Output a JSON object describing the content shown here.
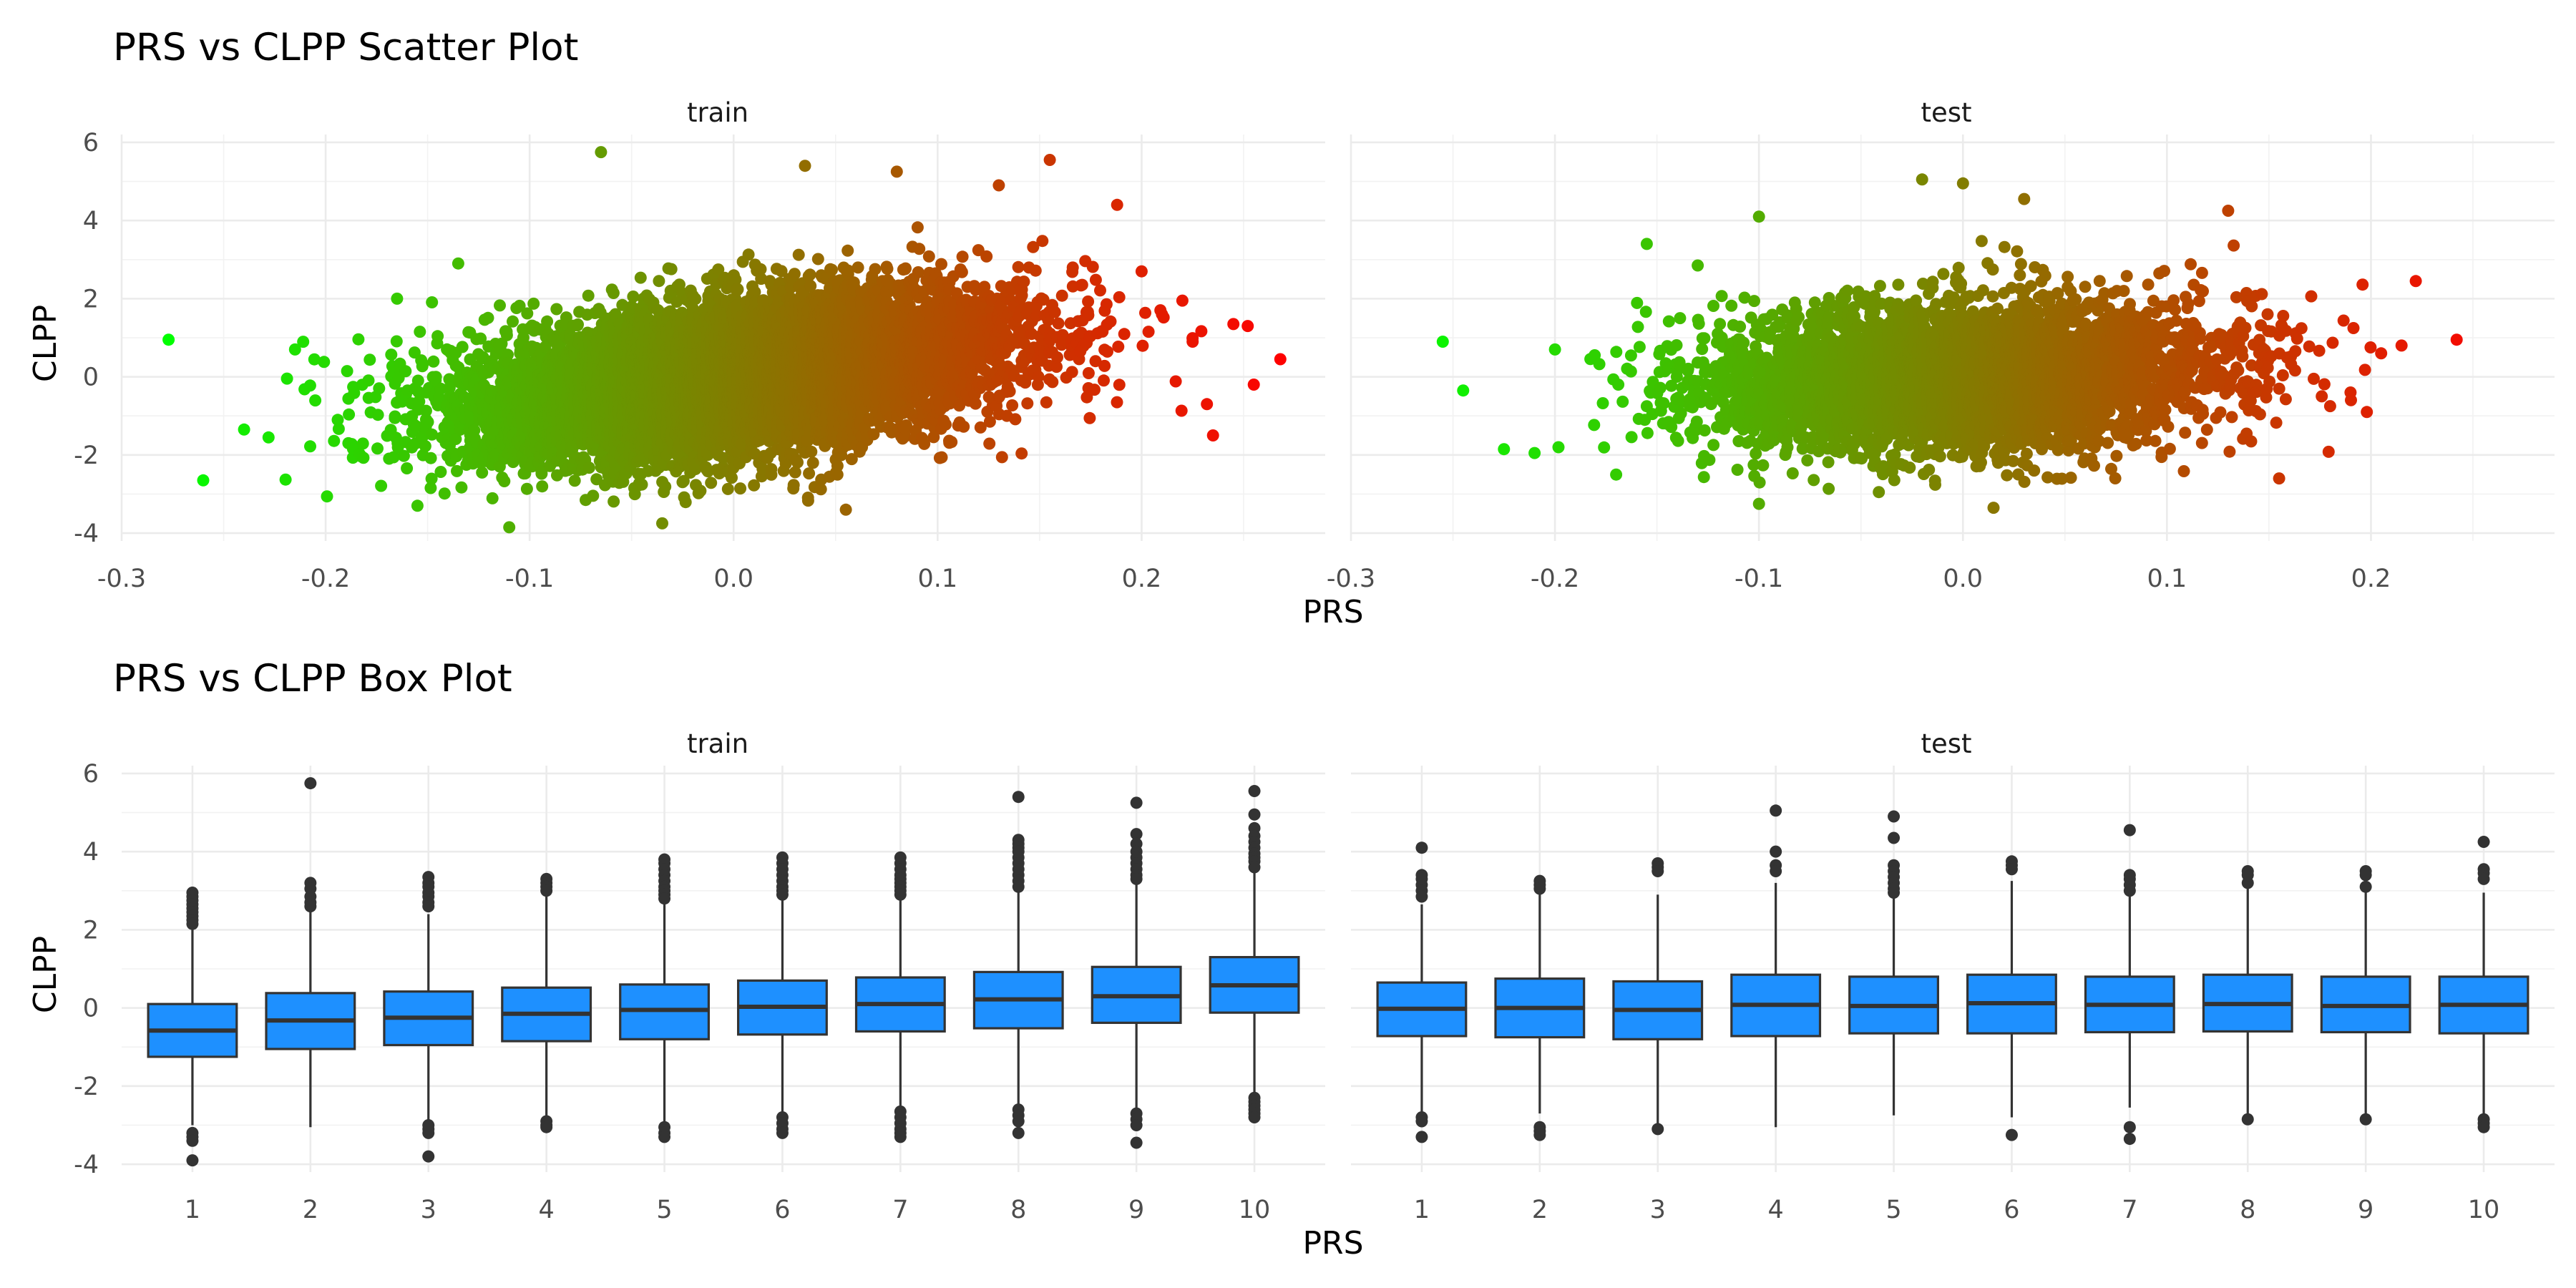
{
  "chart_data": [
    {
      "type": "scatter",
      "title": "PRS vs CLPP Scatter Plot",
      "xlabel": "PRS",
      "ylabel": "CLPP",
      "facets": [
        "train",
        "test"
      ],
      "x_ticks": [
        "-0.3",
        "-0.2",
        "-0.1",
        "0.0",
        "0.1",
        "0.2"
      ],
      "y_ticks": [
        "-4",
        "-2",
        "0",
        "2",
        "4",
        "6"
      ],
      "xlim": [
        -0.3,
        0.29
      ],
      "ylim": [
        -4.2,
        6.2
      ],
      "grid": true,
      "color_scale": {
        "low": "#00ff00",
        "high": "#ff0000",
        "maps": "PRS"
      },
      "series": [
        {
          "facet": "train",
          "cloud": {
            "n": 9000,
            "x_mean": 0.0,
            "x_sd": 0.065,
            "slope": 6.2,
            "resid_sd": 0.95,
            "x_range": [
              -0.22,
              0.23
            ],
            "y_range": [
              -3.4,
              4.3
            ]
          },
          "points": [
            {
              "x": -0.277,
              "y": 0.95
            },
            {
              "x": -0.26,
              "y": -2.65
            },
            {
              "x": -0.24,
              "y": -1.35
            },
            {
              "x": -0.228,
              "y": -1.55
            },
            {
              "x": -0.215,
              "y": 0.7
            },
            {
              "x": -0.165,
              "y": 2.0
            },
            {
              "x": -0.135,
              "y": 2.9
            },
            {
              "x": -0.155,
              "y": -3.3
            },
            {
              "x": -0.11,
              "y": -3.85
            },
            {
              "x": -0.065,
              "y": 5.75
            },
            {
              "x": -0.035,
              "y": -3.75
            },
            {
              "x": 0.035,
              "y": 5.4
            },
            {
              "x": 0.055,
              "y": -3.4
            },
            {
              "x": 0.08,
              "y": 5.25
            },
            {
              "x": 0.13,
              "y": 4.9
            },
            {
              "x": 0.155,
              "y": 5.55
            },
            {
              "x": 0.188,
              "y": 4.4
            },
            {
              "x": 0.2,
              "y": 2.7
            },
            {
              "x": 0.22,
              "y": 1.95
            },
            {
              "x": 0.232,
              "y": -0.7
            },
            {
              "x": 0.235,
              "y": -1.5
            },
            {
              "x": 0.245,
              "y": 1.35
            },
            {
              "x": 0.252,
              "y": 1.3
            },
            {
              "x": 0.255,
              "y": -0.2
            },
            {
              "x": 0.268,
              "y": 0.45
            },
            {
              "x": 0.21,
              "y": 1.6
            },
            {
              "x": 0.225,
              "y": 0.9
            }
          ]
        },
        {
          "facet": "test",
          "cloud": {
            "n": 4500,
            "x_mean": 0.0,
            "x_sd": 0.062,
            "slope": 2.0,
            "resid_sd": 0.95,
            "x_range": [
              -0.2,
              0.2
            ],
            "y_range": [
              -3.0,
              3.5
            ]
          },
          "points": [
            {
              "x": -0.255,
              "y": 0.9
            },
            {
              "x": -0.245,
              "y": -0.35
            },
            {
              "x": -0.225,
              "y": -1.85
            },
            {
              "x": -0.21,
              "y": -1.95
            },
            {
              "x": -0.2,
              "y": 0.7
            },
            {
              "x": -0.17,
              "y": -2.5
            },
            {
              "x": -0.155,
              "y": 3.4
            },
            {
              "x": -0.13,
              "y": 2.85
            },
            {
              "x": -0.1,
              "y": 4.1
            },
            {
              "x": -0.1,
              "y": -3.25
            },
            {
              "x": -0.02,
              "y": 5.05
            },
            {
              "x": 0.0,
              "y": 4.95
            },
            {
              "x": 0.015,
              "y": -3.35
            },
            {
              "x": 0.03,
              "y": 4.55
            },
            {
              "x": 0.13,
              "y": 4.25
            },
            {
              "x": 0.155,
              "y": -2.6
            },
            {
              "x": 0.18,
              "y": -0.75
            },
            {
              "x": 0.19,
              "y": -0.4
            },
            {
              "x": 0.205,
              "y": 0.6
            },
            {
              "x": 0.215,
              "y": 0.8
            },
            {
              "x": 0.222,
              "y": 2.45
            },
            {
              "x": 0.242,
              "y": 0.95
            },
            {
              "x": 0.198,
              "y": -0.9
            }
          ]
        }
      ]
    },
    {
      "type": "box",
      "title": "PRS vs CLPP Box Plot",
      "xlabel": "PRS",
      "ylabel": "CLPP",
      "facets": [
        "train",
        "test"
      ],
      "categories": [
        "1",
        "2",
        "3",
        "4",
        "5",
        "6",
        "7",
        "8",
        "9",
        "10"
      ],
      "y_ticks": [
        "-4",
        "-2",
        "0",
        "2",
        "4",
        "6"
      ],
      "ylim": [
        -4.2,
        6.2
      ],
      "grid": true,
      "fill": "#1e90ff",
      "series": [
        {
          "facet": "train",
          "boxes": [
            {
              "category": "1",
              "q1": -1.25,
              "median": -0.58,
              "q3": 0.1,
              "lower": -3.0,
              "upper": 2.05,
              "outliers": [
                2.95,
                2.85,
                2.75,
                2.65,
                2.55,
                2.45,
                2.35,
                2.25,
                2.15,
                -3.2,
                -3.3,
                -3.4,
                -3.9
              ]
            },
            {
              "category": "2",
              "q1": -1.05,
              "median": -0.32,
              "q3": 0.38,
              "lower": -3.05,
              "upper": 2.45,
              "outliers": [
                5.75,
                3.2,
                3.05,
                2.85,
                2.7,
                2.6
              ]
            },
            {
              "category": "3",
              "q1": -0.95,
              "median": -0.25,
              "q3": 0.42,
              "lower": -2.95,
              "upper": 2.4,
              "outliers": [
                3.35,
                3.2,
                3.1,
                2.95,
                2.85,
                2.7,
                2.6,
                -3.0,
                -3.1,
                -3.2,
                -3.8
              ]
            },
            {
              "category": "4",
              "q1": -0.85,
              "median": -0.15,
              "q3": 0.52,
              "lower": -2.85,
              "upper": 2.9,
              "outliers": [
                3.3,
                3.2,
                3.1,
                3.0,
                -2.9,
                -3.0,
                -3.05
              ]
            },
            {
              "category": "5",
              "q1": -0.8,
              "median": -0.05,
              "q3": 0.6,
              "lower": -2.95,
              "upper": 2.65,
              "outliers": [
                3.8,
                3.7,
                3.55,
                3.4,
                3.25,
                3.1,
                3.0,
                2.9,
                2.8,
                -3.05,
                -3.2,
                -3.3
              ]
            },
            {
              "category": "6",
              "q1": -0.68,
              "median": 0.03,
              "q3": 0.7,
              "lower": -2.75,
              "upper": 2.75,
              "outliers": [
                3.85,
                3.7,
                3.55,
                3.4,
                3.25,
                3.1,
                3.0,
                2.9,
                -2.8,
                -2.95,
                -3.1,
                -3.2
              ]
            },
            {
              "category": "7",
              "q1": -0.6,
              "median": 0.1,
              "q3": 0.78,
              "lower": -2.6,
              "upper": 2.8,
              "outliers": [
                3.85,
                3.7,
                3.55,
                3.4,
                3.3,
                3.2,
                3.1,
                3.0,
                2.9,
                -2.65,
                -2.8,
                -2.95,
                -3.1,
                -3.2,
                -3.3
              ]
            },
            {
              "category": "8",
              "q1": -0.52,
              "median": 0.22,
              "q3": 0.92,
              "lower": -2.55,
              "upper": 3.0,
              "outliers": [
                5.4,
                4.3,
                4.2,
                4.1,
                4.0,
                3.85,
                3.7,
                3.55,
                3.4,
                3.25,
                3.1,
                -2.6,
                -2.75,
                -2.9,
                -3.2
              ]
            },
            {
              "category": "9",
              "q1": -0.38,
              "median": 0.3,
              "q3": 1.05,
              "lower": -2.6,
              "upper": 3.2,
              "outliers": [
                5.25,
                4.45,
                4.2,
                4.0,
                3.85,
                3.7,
                3.55,
                3.4,
                3.3,
                -2.7,
                -2.85,
                -3.0,
                -3.45
              ]
            },
            {
              "category": "10",
              "q1": -0.12,
              "median": 0.58,
              "q3": 1.3,
              "lower": -2.2,
              "upper": 3.5,
              "outliers": [
                5.55,
                4.95,
                4.6,
                4.4,
                4.25,
                4.1,
                3.95,
                3.85,
                3.75,
                3.6,
                -2.3,
                -2.4,
                -2.5,
                -2.6,
                -2.7,
                -2.8
              ]
            }
          ]
        },
        {
          "facet": "test",
          "boxes": [
            {
              "category": "1",
              "q1": -0.72,
              "median": -0.02,
              "q3": 0.65,
              "lower": -2.65,
              "upper": 2.65,
              "outliers": [
                4.1,
                3.4,
                3.3,
                3.15,
                3.0,
                2.85,
                -2.8,
                -2.9,
                -3.3
              ]
            },
            {
              "category": "2",
              "q1": -0.75,
              "median": 0.0,
              "q3": 0.75,
              "lower": -2.7,
              "upper": 2.95,
              "outliers": [
                3.25,
                3.15,
                3.05,
                -3.05,
                -3.15,
                -3.25
              ]
            },
            {
              "category": "3",
              "q1": -0.8,
              "median": -0.05,
              "q3": 0.68,
              "lower": -3.0,
              "upper": 2.9,
              "outliers": [
                3.7,
                3.6,
                3.5,
                -3.1
              ]
            },
            {
              "category": "4",
              "q1": -0.72,
              "median": 0.08,
              "q3": 0.85,
              "lower": -3.05,
              "upper": 3.2,
              "outliers": [
                5.05,
                4.0,
                3.65,
                3.5
              ]
            },
            {
              "category": "5",
              "q1": -0.65,
              "median": 0.05,
              "q3": 0.8,
              "lower": -2.75,
              "upper": 2.95,
              "outliers": [
                4.9,
                4.35,
                3.65,
                3.5,
                3.35,
                3.2,
                3.05,
                2.95
              ]
            },
            {
              "category": "6",
              "q1": -0.65,
              "median": 0.12,
              "q3": 0.85,
              "lower": -2.8,
              "upper": 3.25,
              "outliers": [
                3.75,
                3.65,
                3.55,
                -3.25
              ]
            },
            {
              "category": "7",
              "q1": -0.62,
              "median": 0.08,
              "q3": 0.8,
              "lower": -2.55,
              "upper": 2.85,
              "outliers": [
                4.55,
                3.4,
                3.3,
                3.15,
                3.0,
                -3.05,
                -3.35
              ]
            },
            {
              "category": "8",
              "q1": -0.6,
              "median": 0.1,
              "q3": 0.85,
              "lower": -2.7,
              "upper": 3.1,
              "outliers": [
                3.5,
                3.4,
                3.2,
                -2.85
              ]
            },
            {
              "category": "9",
              "q1": -0.62,
              "median": 0.05,
              "q3": 0.8,
              "lower": -2.75,
              "upper": 3.0,
              "outliers": [
                3.5,
                3.4,
                3.1,
                -2.85
              ]
            },
            {
              "category": "10",
              "q1": -0.65,
              "median": 0.08,
              "q3": 0.8,
              "lower": -2.75,
              "upper": 2.95,
              "outliers": [
                4.25,
                3.55,
                3.45,
                3.3,
                -2.85,
                -2.95,
                -3.05
              ]
            }
          ]
        }
      ]
    }
  ]
}
